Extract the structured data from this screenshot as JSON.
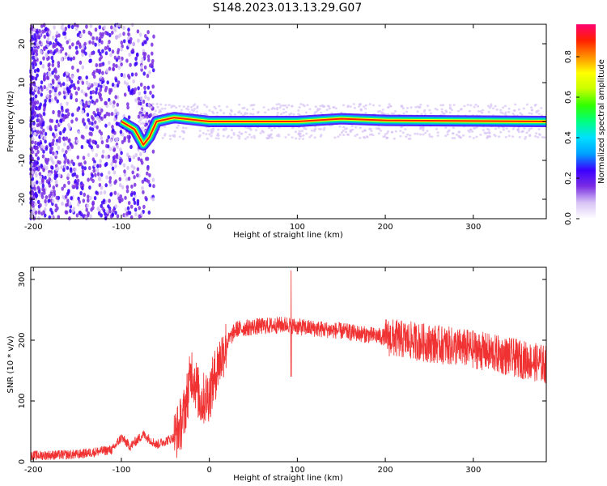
{
  "title": "S148.2023.013.13.29.G07",
  "chart_data": [
    {
      "type": "heatmap",
      "xlabel": "Height of straight line (km)",
      "ylabel": "Frequency (Hz)",
      "xlim": [
        -203,
        383
      ],
      "ylim": [
        -25,
        25
      ],
      "xticks": [
        -200,
        -100,
        0,
        100,
        200,
        300
      ],
      "yticks": [
        -20,
        -10,
        0,
        10,
        20
      ],
      "ridge": [
        {
          "x": -100,
          "y": 0
        },
        {
          "x": -85,
          "y": -2
        },
        {
          "x": -75,
          "y": -6
        },
        {
          "x": -68,
          "y": -4
        },
        {
          "x": -60,
          "y": 0
        },
        {
          "x": -40,
          "y": 1
        },
        {
          "x": 0,
          "y": 0
        },
        {
          "x": 100,
          "y": 0
        },
        {
          "x": 150,
          "y": 0.7
        },
        {
          "x": 200,
          "y": 0.3
        },
        {
          "x": 383,
          "y": 0
        }
      ],
      "colorbar": {
        "label": "Normalized spectral amplitude",
        "ticks": [
          0.0,
          0.2,
          0.4,
          0.6,
          0.8
        ],
        "tick_labels": [
          "0.0",
          "0.2",
          "0.4",
          "0.6",
          "0.8"
        ],
        "range": [
          0,
          0.96
        ],
        "colors": [
          "#ffffff",
          "#d7c3f5",
          "#7a2ee3",
          "#3a00ff",
          "#00a0ff",
          "#00e0ff",
          "#00ff80",
          "#30ff00",
          "#c8ff00",
          "#ffff00",
          "#ff9000",
          "#ff2000",
          "#ff0070"
        ]
      }
    },
    {
      "type": "line",
      "xlabel": "Height of straight line (km)",
      "ylabel": "SNR (10 * v/v)",
      "xlim": [
        -203,
        383
      ],
      "ylim": [
        0,
        320
      ],
      "xticks": [
        -200,
        -100,
        0,
        100,
        200,
        300
      ],
      "yticks": [
        0,
        100,
        200,
        300
      ],
      "color": "#f03232",
      "points": [
        {
          "x": -203,
          "y": 10
        },
        {
          "x": -150,
          "y": 12
        },
        {
          "x": -110,
          "y": 20
        },
        {
          "x": -100,
          "y": 40
        },
        {
          "x": -90,
          "y": 25
        },
        {
          "x": -75,
          "y": 45
        },
        {
          "x": -60,
          "y": 28
        },
        {
          "x": -40,
          "y": 40
        },
        {
          "x": -30,
          "y": 70
        },
        {
          "x": -25,
          "y": 110
        },
        {
          "x": -20,
          "y": 150
        },
        {
          "x": -10,
          "y": 100
        },
        {
          "x": 0,
          "y": 110
        },
        {
          "x": 10,
          "y": 160
        },
        {
          "x": 20,
          "y": 195
        },
        {
          "x": 30,
          "y": 218
        },
        {
          "x": 50,
          "y": 222
        },
        {
          "x": 90,
          "y": 226
        },
        {
          "x": 100,
          "y": 222
        },
        {
          "x": 150,
          "y": 215
        },
        {
          "x": 200,
          "y": 205
        },
        {
          "x": 250,
          "y": 195
        },
        {
          "x": 300,
          "y": 185
        },
        {
          "x": 350,
          "y": 170
        },
        {
          "x": 383,
          "y": 160
        }
      ],
      "spike": {
        "x": 93,
        "y": 315,
        "min": 140
      }
    }
  ]
}
